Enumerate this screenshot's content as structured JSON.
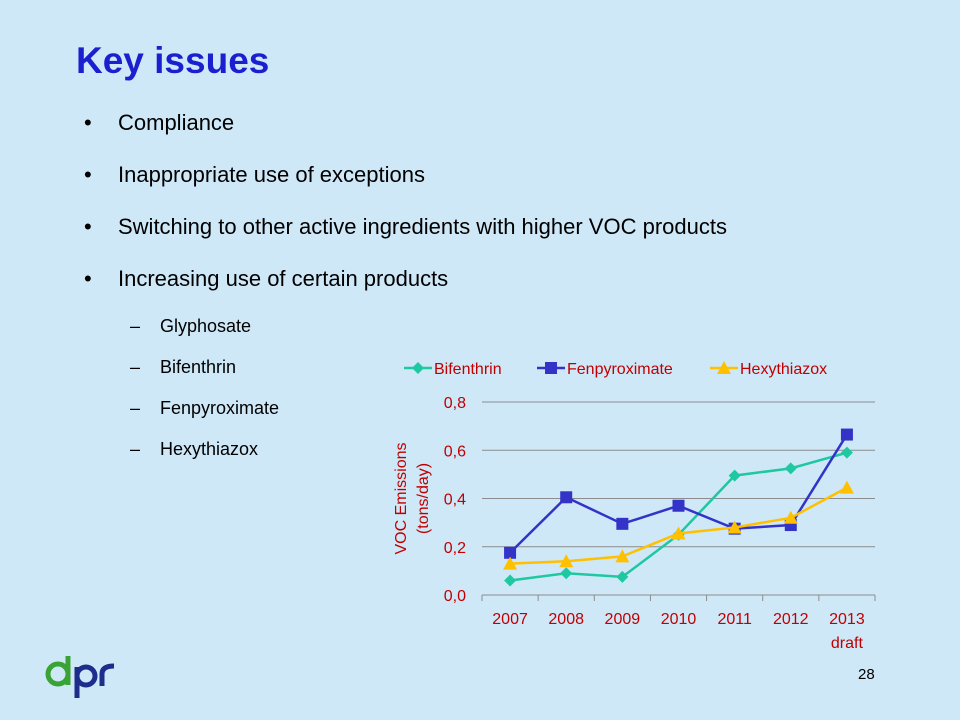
{
  "slide": {
    "title": "Key issues",
    "bullets": [
      "Compliance",
      "Inappropriate use of exceptions",
      "Switching to other active ingredients with higher VOC products",
      "Increasing use of certain products"
    ],
    "sub_bullets": [
      "Glyphosate",
      "Bifenthrin",
      "Fenpyroximate",
      "Hexythiazox"
    ],
    "bullet_char": "•",
    "dash_char": "–",
    "slide_number": "28",
    "logo_text": "dpr"
  },
  "colors": {
    "title": "#1a1fd0",
    "background": "#cfe8f8",
    "axis_text": "#c00000",
    "logo_green": "#3aa335",
    "logo_blue": "#1c2d8c"
  },
  "chart_data": {
    "type": "line",
    "title": "",
    "xlabel": "",
    "ylabel": "VOC Emissions (tons/day)",
    "ylabel_lines": [
      "VOC Emissions",
      "(tons/day)"
    ],
    "categories": [
      "2007",
      "2008",
      "2009",
      "2010",
      "2011",
      "2012",
      "2013 draft"
    ],
    "category_lines": [
      [
        "2007"
      ],
      [
        "2008"
      ],
      [
        "2009"
      ],
      [
        "2010"
      ],
      [
        "2011"
      ],
      [
        "2012"
      ],
      [
        "2013",
        "draft"
      ]
    ],
    "ylim": [
      0,
      0.8
    ],
    "yticks": [
      "0,0",
      "0,2",
      "0,4",
      "0,6",
      "0,8"
    ],
    "ytick_values": [
      0,
      0.2,
      0.4,
      0.6,
      0.8
    ],
    "grid": true,
    "legend_position": "top",
    "series": [
      {
        "name": "Bifenthrin",
        "color": "#1ec8a0",
        "marker": "diamond",
        "values": [
          0.06,
          0.09,
          0.075,
          0.25,
          0.495,
          0.525,
          0.59
        ]
      },
      {
        "name": "Fenpyroximate",
        "color": "#3333c8",
        "marker": "square",
        "values": [
          0.175,
          0.405,
          0.295,
          0.37,
          0.275,
          0.29,
          0.665
        ]
      },
      {
        "name": "Hexythiazox",
        "color": "#ffc000",
        "marker": "triangle",
        "values": [
          0.13,
          0.14,
          0.16,
          0.255,
          0.28,
          0.32,
          0.445
        ]
      }
    ]
  }
}
